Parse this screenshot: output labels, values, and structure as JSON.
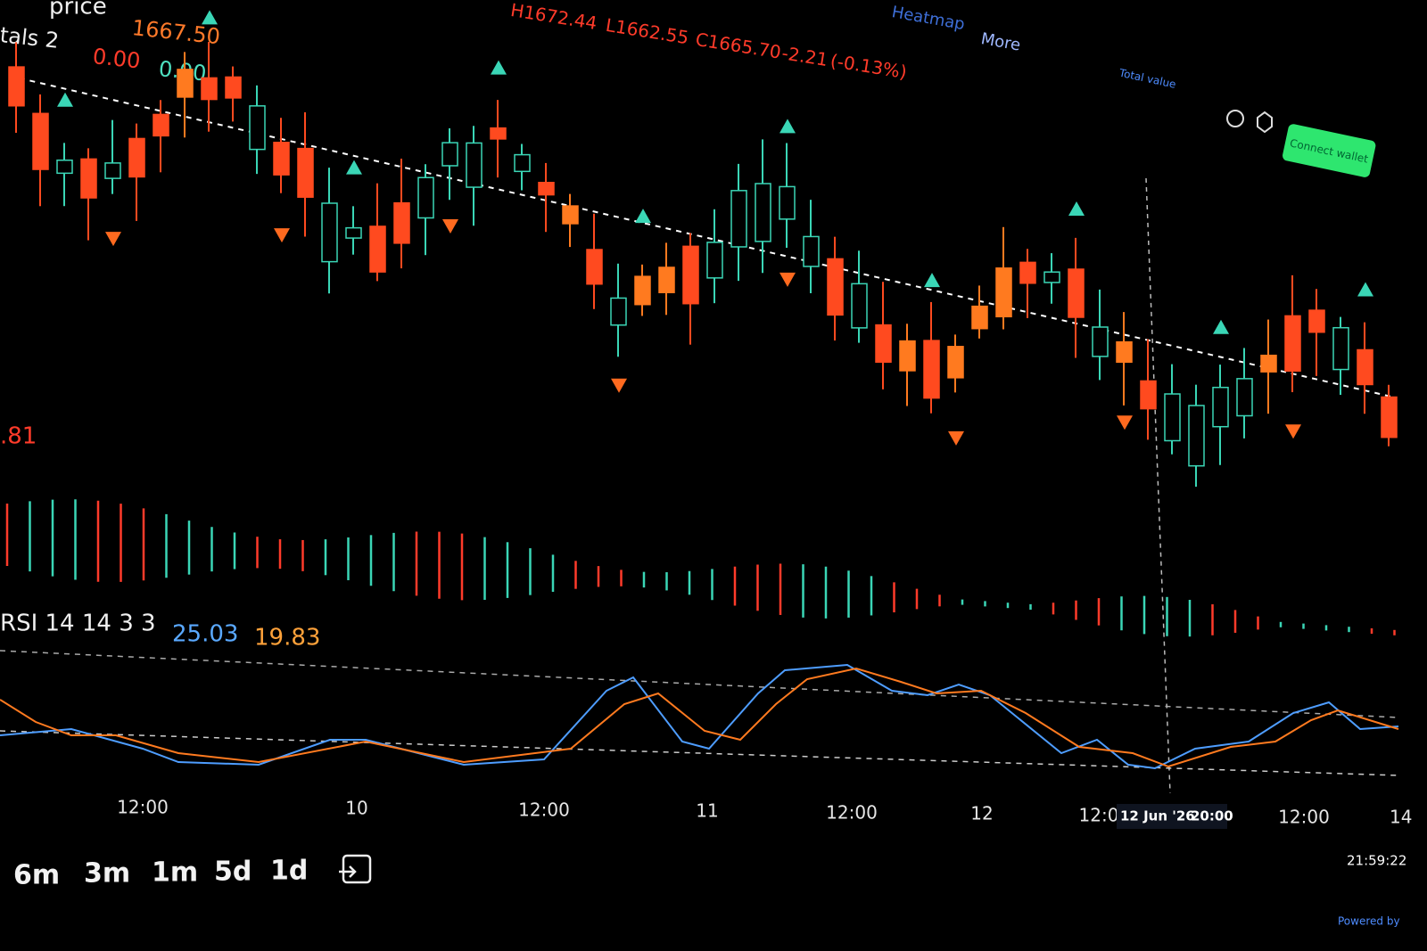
{
  "header": {
    "legend_title": "price",
    "price": "1667.50",
    "totals": "tals 2",
    "totals_values": [
      "0.00",
      "0.00"
    ],
    "ohlc": {
      "high": "H1672.44",
      "low": "L1662.55",
      "close": "C1665.70",
      "change": "-2.21",
      "change_pct": "(-0.13%)"
    },
    "partial_value": ".81"
  },
  "toolbar": {
    "heatmap": "Heatmap",
    "more": "More"
  },
  "wallet": {
    "total_value": "Total value",
    "connect": "Connect wallet"
  },
  "rsi": {
    "label": "RSI 14 14 3 3",
    "k": "25.03",
    "d": "19.83"
  },
  "x_axis": [
    "12:00",
    "10",
    "12:00",
    "11",
    "12:00",
    "12",
    "12:0",
    "12:00",
    "14"
  ],
  "crosshair": {
    "date": "12 Jun '26",
    "time": "20:00"
  },
  "timeframes": [
    "6m",
    "3m",
    "1m",
    "5d",
    "1d"
  ],
  "clock": "21:59:22",
  "footer": "Powered by"
}
